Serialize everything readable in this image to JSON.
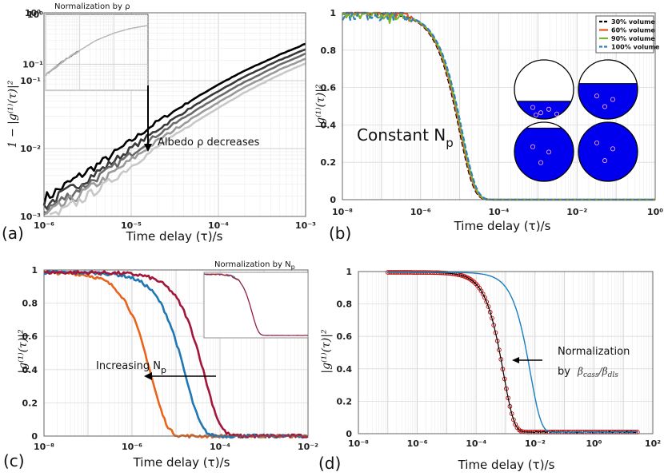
{
  "chart_data": [
    {
      "panel": "a",
      "type": "line",
      "panel_label": "(a)",
      "xlabel": "Time delay (τ)/s",
      "ylabel": "1 − |g⁽¹⁾(τ)|²",
      "xscale": "log",
      "yscale": "log",
      "xlim": [
        1e-06,
        0.001
      ],
      "ylim": [
        0.001,
        1
      ],
      "xticks": [
        "10⁻⁶",
        "10⁻⁵",
        "10⁻⁴",
        "10⁻³"
      ],
      "yticks": [
        "10⁻³",
        "10⁻²",
        "10⁻¹",
        "10⁰"
      ],
      "grid": true,
      "annotation": "Albedo ρ decreases",
      "series": [
        {
          "color": "#000000",
          "x": [
            1e-06,
            2e-06,
            5e-06,
            1e-05,
            2e-05,
            5e-05,
            0.0001,
            0.0002,
            0.0005,
            0.001
          ],
          "y": [
            0.0018,
            0.0032,
            0.0068,
            0.013,
            0.025,
            0.052,
            0.088,
            0.14,
            0.24,
            0.35
          ]
        },
        {
          "color": "#3a3a3a",
          "x": [
            1e-06,
            2e-06,
            5e-06,
            1e-05,
            2e-05,
            5e-05,
            0.0001,
            0.0002,
            0.0005,
            0.001
          ],
          "y": [
            0.0014,
            0.0025,
            0.0053,
            0.01,
            0.019,
            0.041,
            0.07,
            0.115,
            0.2,
            0.29
          ]
        },
        {
          "color": "#6a6a6a",
          "x": [
            1e-06,
            2e-06,
            5e-06,
            1e-05,
            2e-05,
            5e-05,
            0.0001,
            0.0002,
            0.0005,
            0.001
          ],
          "y": [
            0.0012,
            0.0021,
            0.0044,
            0.0083,
            0.016,
            0.034,
            0.058,
            0.096,
            0.17,
            0.25
          ]
        },
        {
          "color": "#9a9a9a",
          "x": [
            1e-06,
            2e-06,
            5e-06,
            1e-05,
            2e-05,
            5e-05,
            0.0001,
            0.0002,
            0.0005,
            0.001
          ],
          "y": [
            0.001,
            0.0017,
            0.0036,
            0.0068,
            0.013,
            0.028,
            0.048,
            0.08,
            0.145,
            0.21
          ]
        },
        {
          "color": "#c8c8c8",
          "x": [
            1e-06,
            2e-06,
            5e-06,
            1e-05,
            2e-05,
            5e-05,
            0.0001,
            0.0002,
            0.0005,
            0.001
          ],
          "y": [
            0.0008,
            0.0014,
            0.0029,
            0.0055,
            0.0105,
            0.023,
            0.04,
            0.067,
            0.122,
            0.18
          ]
        }
      ],
      "inset": {
        "title": "Normalization by ρ",
        "xscale": "log",
        "yscale": "log",
        "xlim": [
          1e-06,
          0.001
        ],
        "ylim": [
          0.03,
          1
        ],
        "yticks": [
          "10⁰",
          "10⁻¹"
        ],
        "x": [
          1e-06,
          3e-06,
          1e-05,
          3e-05,
          0.0001,
          0.0003,
          0.001
        ],
        "y": [
          0.06,
          0.11,
          0.19,
          0.3,
          0.42,
          0.52,
          0.6
        ]
      }
    },
    {
      "panel": "b",
      "type": "line",
      "panel_label": "(b)",
      "xlabel": "Time delay (τ)/s",
      "ylabel": "|g⁽¹⁾(τ)|²",
      "xscale": "log",
      "yscale": "linear",
      "xlim": [
        1e-08,
        1
      ],
      "ylim": [
        0,
        1
      ],
      "xticks": [
        "10⁻⁸",
        "10⁻⁶",
        "10⁻⁴",
        "10⁻²",
        "10⁰"
      ],
      "yticks": [
        "0",
        "0.2",
        "0.4",
        "0.6",
        "0.8",
        "1"
      ],
      "grid": true,
      "legend_position": "top-right",
      "annotation": "Constant N",
      "annotation_sub": "p",
      "series": [
        {
          "name": "30% volume",
          "color": "#000000",
          "dash": "6,3",
          "tau": 2e-05
        },
        {
          "name": "60% volume",
          "color": "#e8541c",
          "dash": "",
          "tau": 2.1e-05
        },
        {
          "name": "90% volume",
          "color": "#7ab52e",
          "dash": "",
          "tau": 2.2e-05
        },
        {
          "name": "100% volume",
          "color": "#2f7fc1",
          "dash": "6,3",
          "tau": 2.3e-05
        }
      ],
      "fill_fractions": [
        0.3,
        0.6,
        0.9,
        1.0
      ],
      "fill_color": "#0000ee"
    },
    {
      "panel": "c",
      "type": "line",
      "panel_label": "(c)",
      "xlabel": "Time delay (τ)/s",
      "ylabel": "|g⁽¹⁾(τ)|²",
      "xscale": "log",
      "yscale": "linear",
      "xlim": [
        1e-08,
        0.01
      ],
      "ylim": [
        0,
        1
      ],
      "xticks": [
        "10⁻⁸",
        "10⁻⁶",
        "10⁻⁴",
        "10⁻²"
      ],
      "yticks": [
        "0",
        "0.2",
        "0.4",
        "0.6",
        "0.8",
        "1"
      ],
      "grid": true,
      "annotation": "Increasing N",
      "annotation_sub": "p",
      "series": [
        {
          "color": "#e8641c",
          "tau": 5.5e-06
        },
        {
          "color": "#1f77b4",
          "tau": 3.3e-05
        },
        {
          "color": "#a3163a",
          "tau": 9e-05
        }
      ],
      "inset": {
        "title": "Normalization by N",
        "title_sub": "p",
        "colors": [
          "#e8641c",
          "#1f77b4",
          "#a3163a"
        ]
      }
    },
    {
      "panel": "d",
      "type": "line",
      "panel_label": "(d)",
      "xlabel": "Time delay (τ)/s",
      "ylabel": "|g⁽¹⁾(τ)|²",
      "xscale": "log",
      "yscale": "linear",
      "xlim": [
        1e-08,
        100
      ],
      "ylim": [
        0,
        1
      ],
      "xticks": [
        "10⁻⁸",
        "10⁻⁶",
        "10⁻⁴",
        "10⁻²",
        "10⁰",
        "10²"
      ],
      "yticks": [
        "0",
        "0.2",
        "0.4",
        "0.6",
        "0.8",
        "1"
      ],
      "grid": true,
      "annotation": "Normalization",
      "annotation2": "by",
      "annotation_math": "βcass/βdls",
      "series": [
        {
          "color": "#c00000",
          "marker": "circle",
          "tau": 0.0017
        },
        {
          "color": "#000000",
          "tau": 0.0017
        },
        {
          "color": "#1a7fc0",
          "tau": 0.014
        }
      ]
    }
  ]
}
